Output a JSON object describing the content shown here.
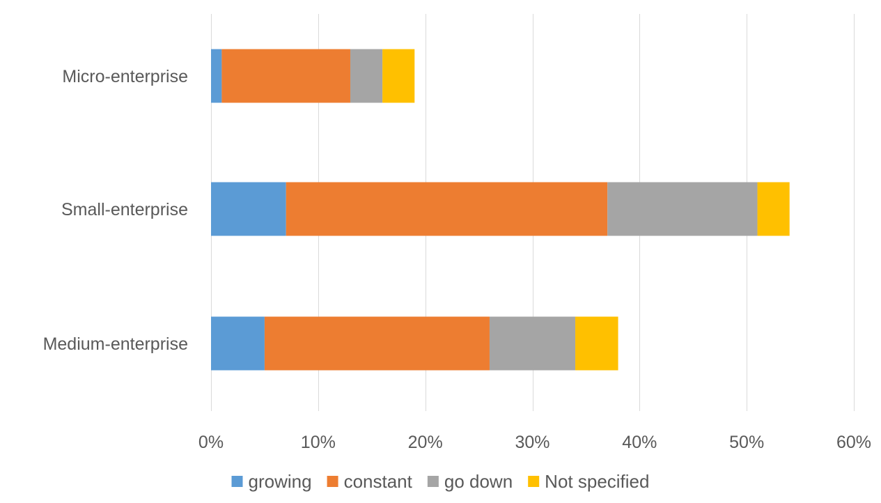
{
  "chart_data": {
    "type": "bar",
    "orientation": "horizontal",
    "stacked": true,
    "title": "",
    "xlabel": "",
    "ylabel": "",
    "categories": [
      "Micro-enterprise",
      "Small-enterprise",
      "Medium-enterprise"
    ],
    "series": [
      {
        "name": "growing",
        "color": "#5B9BD5",
        "values": [
          1,
          7,
          5
        ]
      },
      {
        "name": "constant",
        "color": "#ED7D31",
        "values": [
          12,
          30,
          21
        ]
      },
      {
        "name": "go down",
        "color": "#A5A5A5",
        "values": [
          3,
          14,
          8
        ]
      },
      {
        "name": "Not specified",
        "color": "#FFC000",
        "values": [
          3,
          3,
          4
        ]
      }
    ],
    "xlim": [
      0,
      60
    ],
    "x_ticks": [
      0,
      10,
      20,
      30,
      40,
      50,
      60
    ],
    "x_tick_labels": [
      "0%",
      "10%",
      "20%",
      "30%",
      "40%",
      "50%",
      "60%"
    ],
    "value_unit": "%",
    "grid": "vertical",
    "gridline_color": "#D9D9D9",
    "legend_position": "bottom"
  }
}
